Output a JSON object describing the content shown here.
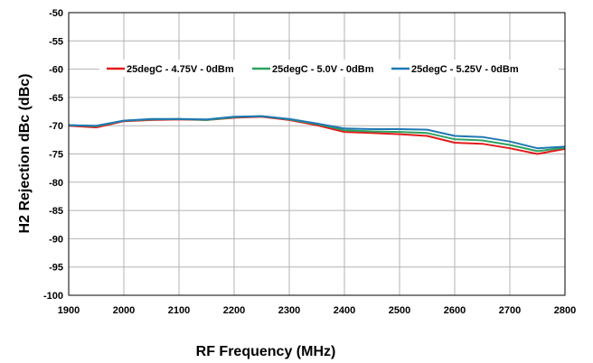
{
  "chart_data": {
    "type": "line",
    "title": "",
    "xlabel": "RF Frequency (MHz)",
    "ylabel": "H2 Rejection dBc (dBc)",
    "xlim": [
      1900,
      2800
    ],
    "ylim": [
      -100,
      -50
    ],
    "xticks": [
      "1900",
      "2000",
      "2100",
      "2200",
      "2300",
      "2400",
      "2500",
      "2600",
      "2700",
      "2800"
    ],
    "yticks": [
      "-50",
      "-55",
      "-60",
      "-65",
      "-70",
      "-75",
      "-80",
      "-85",
      "-90",
      "-95",
      "-100"
    ],
    "grid": true,
    "legend_position": "top",
    "x": [
      1900,
      1950,
      2000,
      2050,
      2100,
      2150,
      2200,
      2250,
      2300,
      2350,
      2400,
      2450,
      2500,
      2550,
      2600,
      2650,
      2700,
      2750,
      2800
    ],
    "series": [
      {
        "name": "25degC - 4.75V - 0dBm",
        "color": "#e31a1c",
        "values": [
          -70.0,
          -70.3,
          -69.2,
          -69.0,
          -68.9,
          -69.0,
          -68.6,
          -68.4,
          -69.0,
          -69.9,
          -71.1,
          -71.3,
          -71.5,
          -71.8,
          -73.0,
          -73.2,
          -74.0,
          -75.0,
          -74.1
        ]
      },
      {
        "name": "25degC - 5.0V - 0dBm",
        "color": "#2ca25f",
        "values": [
          -69.9,
          -70.1,
          -69.1,
          -68.9,
          -68.8,
          -69.0,
          -68.5,
          -68.3,
          -68.9,
          -69.7,
          -70.8,
          -71.0,
          -71.1,
          -71.3,
          -72.4,
          -72.6,
          -73.4,
          -74.5,
          -73.9
        ]
      },
      {
        "name": "25degC - 5.25V - 0dBm",
        "color": "#1f78b4",
        "values": [
          -69.9,
          -70.0,
          -69.1,
          -68.8,
          -68.8,
          -68.9,
          -68.4,
          -68.3,
          -68.8,
          -69.6,
          -70.5,
          -70.6,
          -70.6,
          -70.7,
          -71.8,
          -72.0,
          -72.8,
          -74.0,
          -73.7
        ]
      }
    ]
  }
}
